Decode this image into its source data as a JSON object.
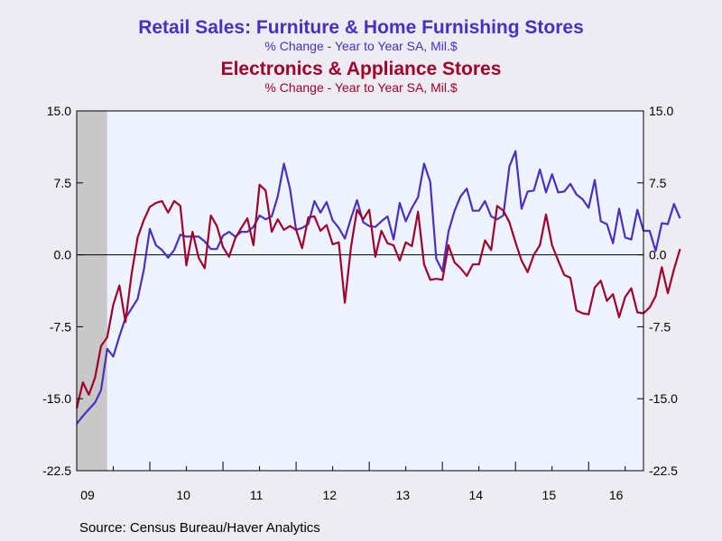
{
  "colors": {
    "series1": "#4B2EC2",
    "series2": "#A0002B",
    "plot_bg": "#EEF4FF",
    "page_bg": "#ECECF2",
    "shade": "#C8C8C8"
  },
  "source": "Source:  Census Bureau/Haver Analytics",
  "chart_data": {
    "type": "line",
    "titles": [
      {
        "text": "Retail Sales: Furniture & Home Furnishing Stores",
        "color": "#4B2EC2"
      },
      {
        "text": "% Change - Year to Year    SA, Mil.$",
        "color": "#4B2EC2"
      },
      {
        "text": "Electronics & Appliance Stores",
        "color": "#A0002B"
      },
      {
        "text": "% Change - Year to Year    SA, Mil.$",
        "color": "#A0002B"
      }
    ],
    "ylim": [
      -22.5,
      15.0
    ],
    "yticks": [
      15.0,
      7.5,
      0.0,
      -7.5,
      -15.0,
      -22.5
    ],
    "ytick_labels": [
      "15.0",
      "7.5",
      "0.0",
      "-7.5",
      "-15.0",
      "-22.5"
    ],
    "xlim": [
      "2009-01",
      "2016-10"
    ],
    "xtick_labels": [
      {
        "label": "09",
        "year": 2009
      },
      {
        "label": "10",
        "year": 2010
      },
      {
        "label": "11",
        "year": 2011
      },
      {
        "label": "12",
        "year": 2012
      },
      {
        "label": "13",
        "year": 2013
      },
      {
        "label": "14",
        "year": 2014
      },
      {
        "label": "15",
        "year": 2015
      },
      {
        "label": "16",
        "year": 2016
      }
    ],
    "recession_shading": [
      "2009-01",
      "2009-06"
    ],
    "zero_line": true,
    "grid": false,
    "series": [
      {
        "x_start": "2009-01",
        "frequency": "monthly",
        "color": "#4B2EC2",
        "values": [
          -17.6,
          -16.8,
          -16.1,
          -15.4,
          -14.1,
          -9.8,
          -10.6,
          -8.5,
          -6.6,
          -5.6,
          -4.6,
          -1.6,
          2.7,
          1.0,
          0.5,
          -0.3,
          0.5,
          2.1,
          1.9,
          1.9,
          1.9,
          1.4,
          0.6,
          0.6,
          2.0,
          2.4,
          1.9,
          2.4,
          2.4,
          2.9,
          4.1,
          3.7,
          4.0,
          6.1,
          9.5,
          6.9,
          2.6,
          2.8,
          3.2,
          5.6,
          4.4,
          5.5,
          3.6,
          2.8,
          1.7,
          3.8,
          5.7,
          3.4,
          3.0,
          2.9,
          3.5,
          4.0,
          1.6,
          5.4,
          3.5,
          4.9,
          6.0,
          9.5,
          7.6,
          -0.4,
          -1.7,
          2.4,
          4.6,
          6.1,
          6.9,
          4.6,
          4.6,
          5.6,
          4.0,
          3.7,
          4.1,
          9.2,
          10.8,
          4.8,
          6.6,
          6.7,
          8.9,
          6.5,
          8.4,
          6.5,
          6.6,
          7.4,
          6.3,
          5.8,
          4.9,
          7.8,
          3.5,
          3.2,
          1.2,
          4.8,
          1.8,
          1.6,
          4.7,
          2.5,
          2.5,
          0.4,
          3.3,
          3.2,
          5.3,
          3.8
        ]
      },
      {
        "x_start": "2009-01",
        "frequency": "monthly",
        "color": "#A0002B",
        "values": [
          -16.0,
          -13.3,
          -14.6,
          -12.8,
          -9.5,
          -8.6,
          -5.2,
          -3.2,
          -7.0,
          -2.0,
          1.8,
          3.6,
          5.0,
          5.4,
          5.6,
          4.4,
          5.6,
          5.1,
          -1.1,
          2.4,
          -0.3,
          -1.4,
          4.1,
          3.0,
          0.8,
          -0.2,
          1.7,
          2.8,
          3.8,
          1.0,
          7.3,
          6.7,
          2.4,
          3.7,
          2.6,
          3.0,
          2.6,
          0.7,
          3.9,
          4.0,
          2.5,
          3.1,
          1.1,
          1.3,
          -5.0,
          0.8,
          4.7,
          3.7,
          4.7,
          -0.2,
          2.5,
          1.2,
          1.0,
          -0.6,
          1.3,
          0.9,
          4.5,
          -1.0,
          -2.6,
          -2.5,
          -2.6,
          1.0,
          -0.8,
          -1.4,
          -2.2,
          -1.0,
          -1.0,
          1.5,
          0.5,
          5.1,
          4.6,
          3.4,
          1.3,
          -0.6,
          -1.8,
          0.0,
          1.0,
          4.2,
          1.0,
          -0.6,
          -2.1,
          -2.4,
          -5.8,
          -6.1,
          -6.2,
          -3.4,
          -2.7,
          -4.8,
          -4.1,
          -6.5,
          -4.4,
          -3.5,
          -6.0,
          -6.1,
          -5.5,
          -4.3,
          -1.3,
          -4.0,
          -1.5,
          0.6
        ]
      }
    ],
    "right_axis_mirrors_left": true
  }
}
